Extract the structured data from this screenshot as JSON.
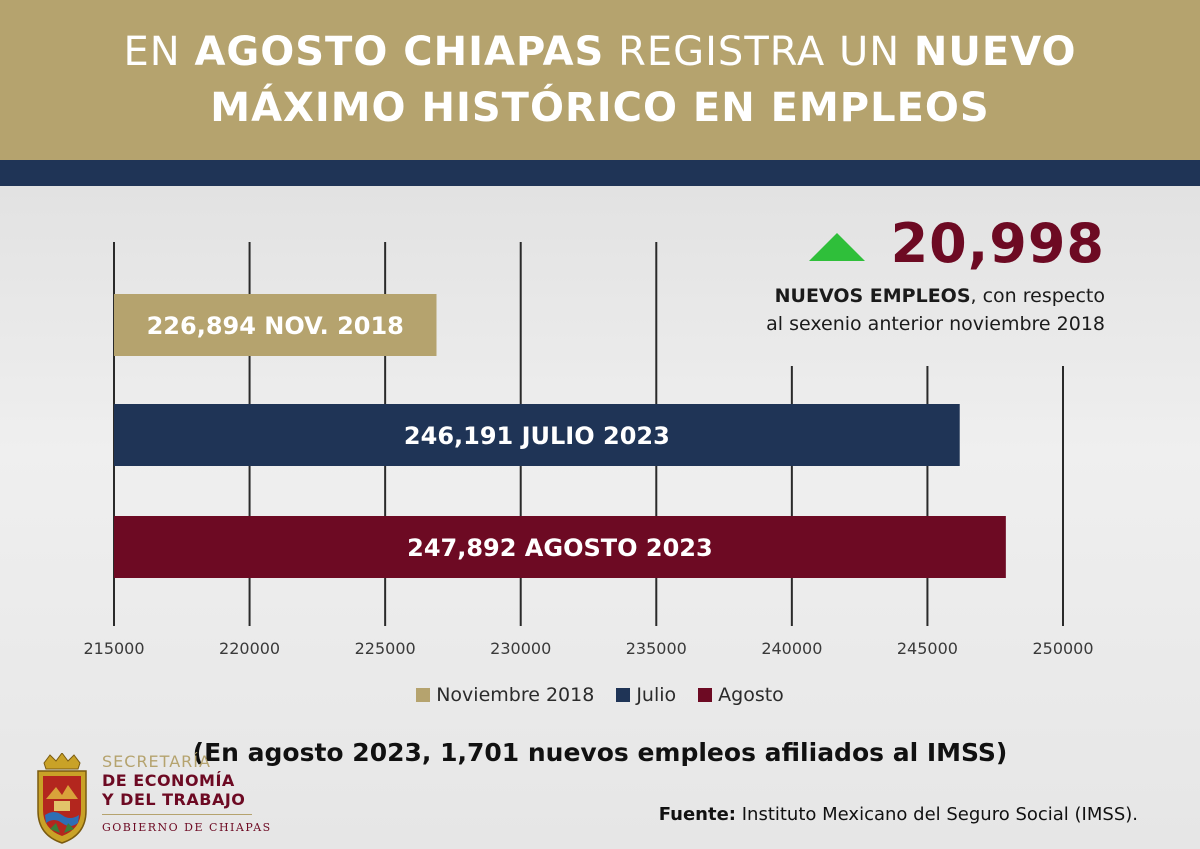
{
  "header": {
    "title_line1": [
      {
        "text": "EN ",
        "bold": false
      },
      {
        "text": "AGOSTO CHIAPAS",
        "bold": true
      },
      {
        "text": " REGISTRA UN ",
        "bold": false
      },
      {
        "text": "NUEVO",
        "bold": true
      }
    ],
    "title_line2": "MÁXIMO HISTÓRICO EN EMPLEOS"
  },
  "colors": {
    "gold": "#b5a36e",
    "navy": "#1f3456",
    "maroon": "#6d0a23",
    "green_arrow": "#2fbf3a"
  },
  "stat": {
    "icon": "up-triangle-icon",
    "value": "20,998",
    "desc_bold": "NUEVOS EMPLEOS",
    "desc_line1_rest": ", con respecto",
    "desc_line2": "al sexenio anterior noviembre 2018"
  },
  "chart_data": {
    "type": "bar",
    "orientation": "horizontal",
    "xlim": [
      215000,
      250000
    ],
    "x_ticks": [
      "215000",
      "220000",
      "225000",
      "230000",
      "235000",
      "240000",
      "245000",
      "250000"
    ],
    "grid": true,
    "legend_position": "bottom",
    "series": [
      {
        "name": "Noviembre 2018",
        "value": 226894,
        "label": "226,894 NOV. 2018",
        "color": "#b5a36e"
      },
      {
        "name": "Julio",
        "value": 246191,
        "label": "246,191 JULIO 2023",
        "color": "#1f3456"
      },
      {
        "name": "Agosto",
        "value": 247892,
        "label": "247,892 AGOSTO 2023",
        "color": "#6d0a23"
      }
    ]
  },
  "footnote": "(En agosto 2023, 1,701 nuevos empleos afiliados al IMSS)",
  "source": {
    "label": "Fuente:",
    "text": " Instituto Mexicano del Seguro Social (IMSS)."
  },
  "logo": {
    "icon": "chiapas-coat-of-arms-icon",
    "line1": "SECRETARÍA",
    "line2": "DE ECONOMÍA",
    "line3": "Y DEL TRABAJO",
    "line4": "GOBIERNO DE CHIAPAS"
  }
}
